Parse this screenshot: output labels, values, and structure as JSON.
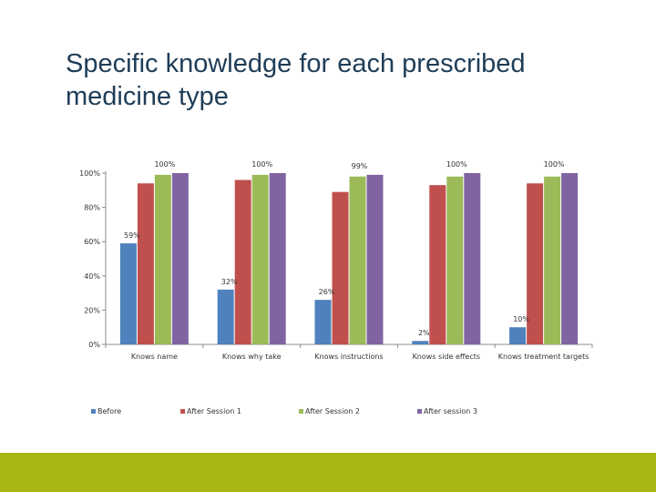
{
  "title": "Specific knowledge for each prescribed medicine type",
  "chart_data": {
    "type": "bar",
    "categories": [
      "Knows name",
      "Knows why take",
      "Knows instructions",
      "Knows side effects",
      "Knows treatment targets"
    ],
    "series": [
      {
        "name": "Before",
        "color": "#4f81bd",
        "values": [
          59,
          32,
          26,
          2,
          10
        ]
      },
      {
        "name": "After Session 1",
        "color": "#c0504d",
        "values": [
          94,
          96,
          89,
          93,
          94
        ]
      },
      {
        "name": "After Session 2",
        "color": "#9bbb59",
        "values": [
          99,
          99,
          98,
          98,
          98
        ]
      },
      {
        "name": "After session 3",
        "color": "#8064a2",
        "values": [
          100,
          100,
          99,
          100,
          100
        ]
      }
    ],
    "data_labels": [
      {
        "category": 0,
        "series": 0,
        "text": "59%"
      },
      {
        "category": 0,
        "series": 3,
        "text": "100%"
      },
      {
        "category": 1,
        "series": 0,
        "text": "32%"
      },
      {
        "category": 1,
        "series": 3,
        "text": "100%"
      },
      {
        "category": 2,
        "series": 0,
        "text": "26%"
      },
      {
        "category": 2,
        "series": 3,
        "text": "99%"
      },
      {
        "category": 3,
        "series": 0,
        "text": "2%"
      },
      {
        "category": 3,
        "series": 3,
        "text": "100%"
      },
      {
        "category": 4,
        "series": 0,
        "text": "10%"
      },
      {
        "category": 4,
        "series": 3,
        "text": "100%"
      }
    ],
    "yticks": [
      "0%",
      "20%",
      "40%",
      "60%",
      "80%",
      "100%"
    ],
    "ylim": [
      0,
      100
    ],
    "grid": false,
    "legend_position": "bottom",
    "title": "",
    "xlabel": "",
    "ylabel": ""
  }
}
